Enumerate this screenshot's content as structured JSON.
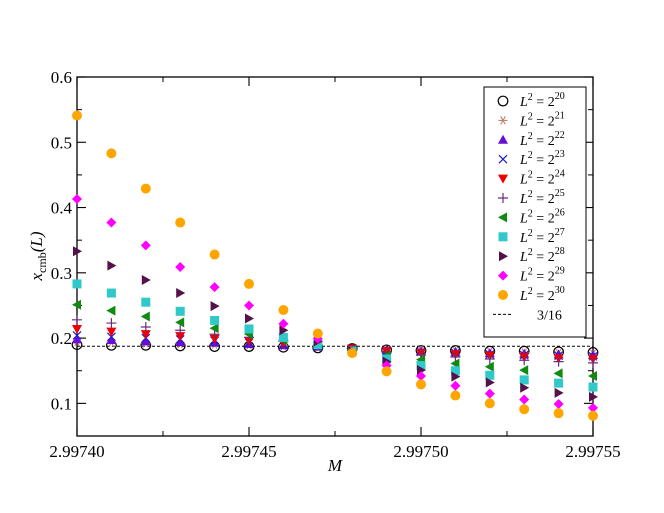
{
  "chart_data": {
    "type": "scatter",
    "title": "",
    "xlabel": "M",
    "ylabel": {
      "main": "x",
      "sub": "cmb",
      "suffix": "(L)"
    },
    "xlim": [
      2.9974,
      2.99755
    ],
    "ylim": [
      0.05,
      0.6
    ],
    "x_ticks": [
      2.9974,
      2.99745,
      2.9975,
      2.99755
    ],
    "x_tick_labels": [
      "2.99740",
      "2.99745",
      "2.99750",
      "2.99755"
    ],
    "y_ticks": [
      0.1,
      0.2,
      0.3,
      0.4,
      0.5,
      0.6
    ],
    "y_tick_labels": [
      "0.1",
      "0.2",
      "0.3",
      "0.4",
      "0.5",
      "0.6"
    ],
    "grid": false,
    "legend_position": "top-right",
    "x": [
      2.9974,
      2.99741,
      2.99742,
      2.99743,
      2.99744,
      2.99745,
      2.99746,
      2.99747,
      2.99748,
      2.99749,
      2.9975,
      2.99751,
      2.99752,
      2.99753,
      2.99754,
      2.99755
    ],
    "series": [
      {
        "name": "20",
        "marker": "circle-open",
        "color": "#000000",
        "values": [
          0.19,
          0.189,
          0.189,
          0.188,
          0.187,
          0.187,
          0.186,
          0.185,
          0.184,
          0.182,
          0.181,
          0.181,
          0.18,
          0.18,
          0.179,
          0.178
        ]
      },
      {
        "name": "21",
        "marker": "asterisk",
        "color": "#c08070",
        "values": [
          0.194,
          0.193,
          0.192,
          0.191,
          0.19,
          0.189,
          0.188,
          0.186,
          0.184,
          0.182,
          0.181,
          0.18,
          0.179,
          0.178,
          0.177,
          0.176
        ]
      },
      {
        "name": "22",
        "marker": "triangle-up",
        "color": "#6a0dd8",
        "values": [
          0.198,
          0.197,
          0.195,
          0.194,
          0.193,
          0.191,
          0.189,
          0.187,
          0.184,
          0.182,
          0.18,
          0.179,
          0.177,
          0.176,
          0.175,
          0.174
        ]
      },
      {
        "name": "23",
        "marker": "cross",
        "color": "#1c1ccf",
        "values": [
          0.204,
          0.202,
          0.2,
          0.198,
          0.196,
          0.193,
          0.19,
          0.187,
          0.184,
          0.181,
          0.179,
          0.177,
          0.175,
          0.174,
          0.173,
          0.172
        ]
      },
      {
        "name": "24",
        "marker": "triangle-down",
        "color": "#ee0000",
        "values": [
          0.214,
          0.21,
          0.206,
          0.203,
          0.199,
          0.196,
          0.192,
          0.188,
          0.184,
          0.18,
          0.177,
          0.175,
          0.173,
          0.171,
          0.169,
          0.168
        ]
      },
      {
        "name": "25",
        "marker": "plus",
        "color": "#6c2c7c",
        "values": [
          0.228,
          0.223,
          0.217,
          0.212,
          0.206,
          0.201,
          0.195,
          0.189,
          0.183,
          0.178,
          0.174,
          0.171,
          0.168,
          0.166,
          0.164,
          0.162
        ]
      },
      {
        "name": "26",
        "marker": "triangle-left",
        "color": "#108a10",
        "values": [
          0.251,
          0.242,
          0.233,
          0.224,
          0.215,
          0.206,
          0.197,
          0.189,
          0.182,
          0.173,
          0.167,
          0.161,
          0.156,
          0.151,
          0.146,
          0.142
        ]
      },
      {
        "name": "27",
        "marker": "square",
        "color": "#30c8c8",
        "values": [
          0.283,
          0.269,
          0.255,
          0.241,
          0.227,
          0.214,
          0.201,
          0.19,
          0.18,
          0.168,
          0.158,
          0.15,
          0.143,
          0.136,
          0.131,
          0.125
        ]
      },
      {
        "name": "28",
        "marker": "triangle-right",
        "color": "#54114a",
        "values": [
          0.333,
          0.311,
          0.289,
          0.269,
          0.249,
          0.23,
          0.212,
          0.195,
          0.18,
          0.164,
          0.151,
          0.141,
          0.132,
          0.124,
          0.116,
          0.11
        ]
      },
      {
        "name": "29",
        "marker": "diamond",
        "color": "#ff00ff",
        "values": [
          0.413,
          0.377,
          0.342,
          0.309,
          0.278,
          0.25,
          0.222,
          0.199,
          0.178,
          0.158,
          0.142,
          0.127,
          0.115,
          0.106,
          0.099,
          0.093
        ]
      },
      {
        "name": "30",
        "marker": "circle-filled",
        "color": "#ffa500",
        "values": [
          0.541,
          0.483,
          0.429,
          0.377,
          0.328,
          0.283,
          0.243,
          0.207,
          0.177,
          0.149,
          0.129,
          0.112,
          0.1,
          0.091,
          0.085,
          0.081
        ]
      }
    ],
    "reference_line": {
      "label": "3/16",
      "y": 0.1875,
      "style": "dashed",
      "color": "#000000"
    },
    "legend_prefix": "L",
    "legend_base": "2"
  }
}
